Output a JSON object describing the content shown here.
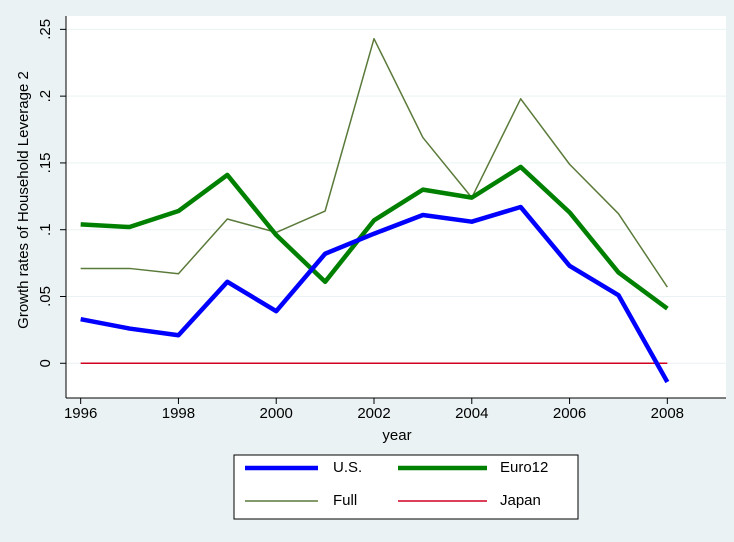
{
  "chart_data": {
    "type": "line",
    "y_label": "Growth rates of Household Leverage 2",
    "x_label": "year",
    "x": [
      1996,
      1997,
      1998,
      1999,
      2000,
      2001,
      2002,
      2003,
      2004,
      2005,
      2006,
      2007,
      2008
    ],
    "xlim": [
      1995.7,
      2009.2
    ],
    "xticks": [
      1996,
      1998,
      2000,
      2002,
      2004,
      2006,
      2008
    ],
    "ylim": [
      -0.026,
      0.26
    ],
    "yticks": [
      0,
      {
        "value": 0.05,
        "label": ".05"
      },
      {
        "value": 0.1,
        "label": ".1"
      },
      {
        "value": 0.15,
        "label": ".15"
      },
      {
        "value": 0.2,
        "label": ".2"
      },
      {
        "value": 0.25,
        "label": ".25"
      }
    ],
    "grid": true,
    "series": [
      {
        "name": "U.S.",
        "color": "#0000ff",
        "width": 4.5,
        "values": [
          0.033,
          0.026,
          0.021,
          0.061,
          0.039,
          0.082,
          0.097,
          0.111,
          0.106,
          0.117,
          0.073,
          0.051,
          -0.014
        ]
      },
      {
        "name": "Euro12",
        "color": "#008000",
        "width": 4.5,
        "values": [
          0.104,
          0.102,
          0.114,
          0.141,
          0.096,
          0.061,
          0.107,
          0.13,
          0.124,
          0.147,
          0.113,
          0.068,
          0.041
        ]
      },
      {
        "name": "Full",
        "color": "#5a7a3a",
        "width": 1.5,
        "values": [
          0.071,
          0.071,
          0.067,
          0.108,
          0.098,
          0.114,
          0.243,
          0.169,
          0.124,
          0.198,
          0.149,
          0.112,
          0.057
        ]
      },
      {
        "name": "Japan",
        "color": "#d00020",
        "width": 1.5,
        "values": [
          0,
          0,
          0,
          0,
          0,
          0,
          0,
          0,
          0,
          0,
          0,
          0,
          0
        ]
      }
    ]
  }
}
